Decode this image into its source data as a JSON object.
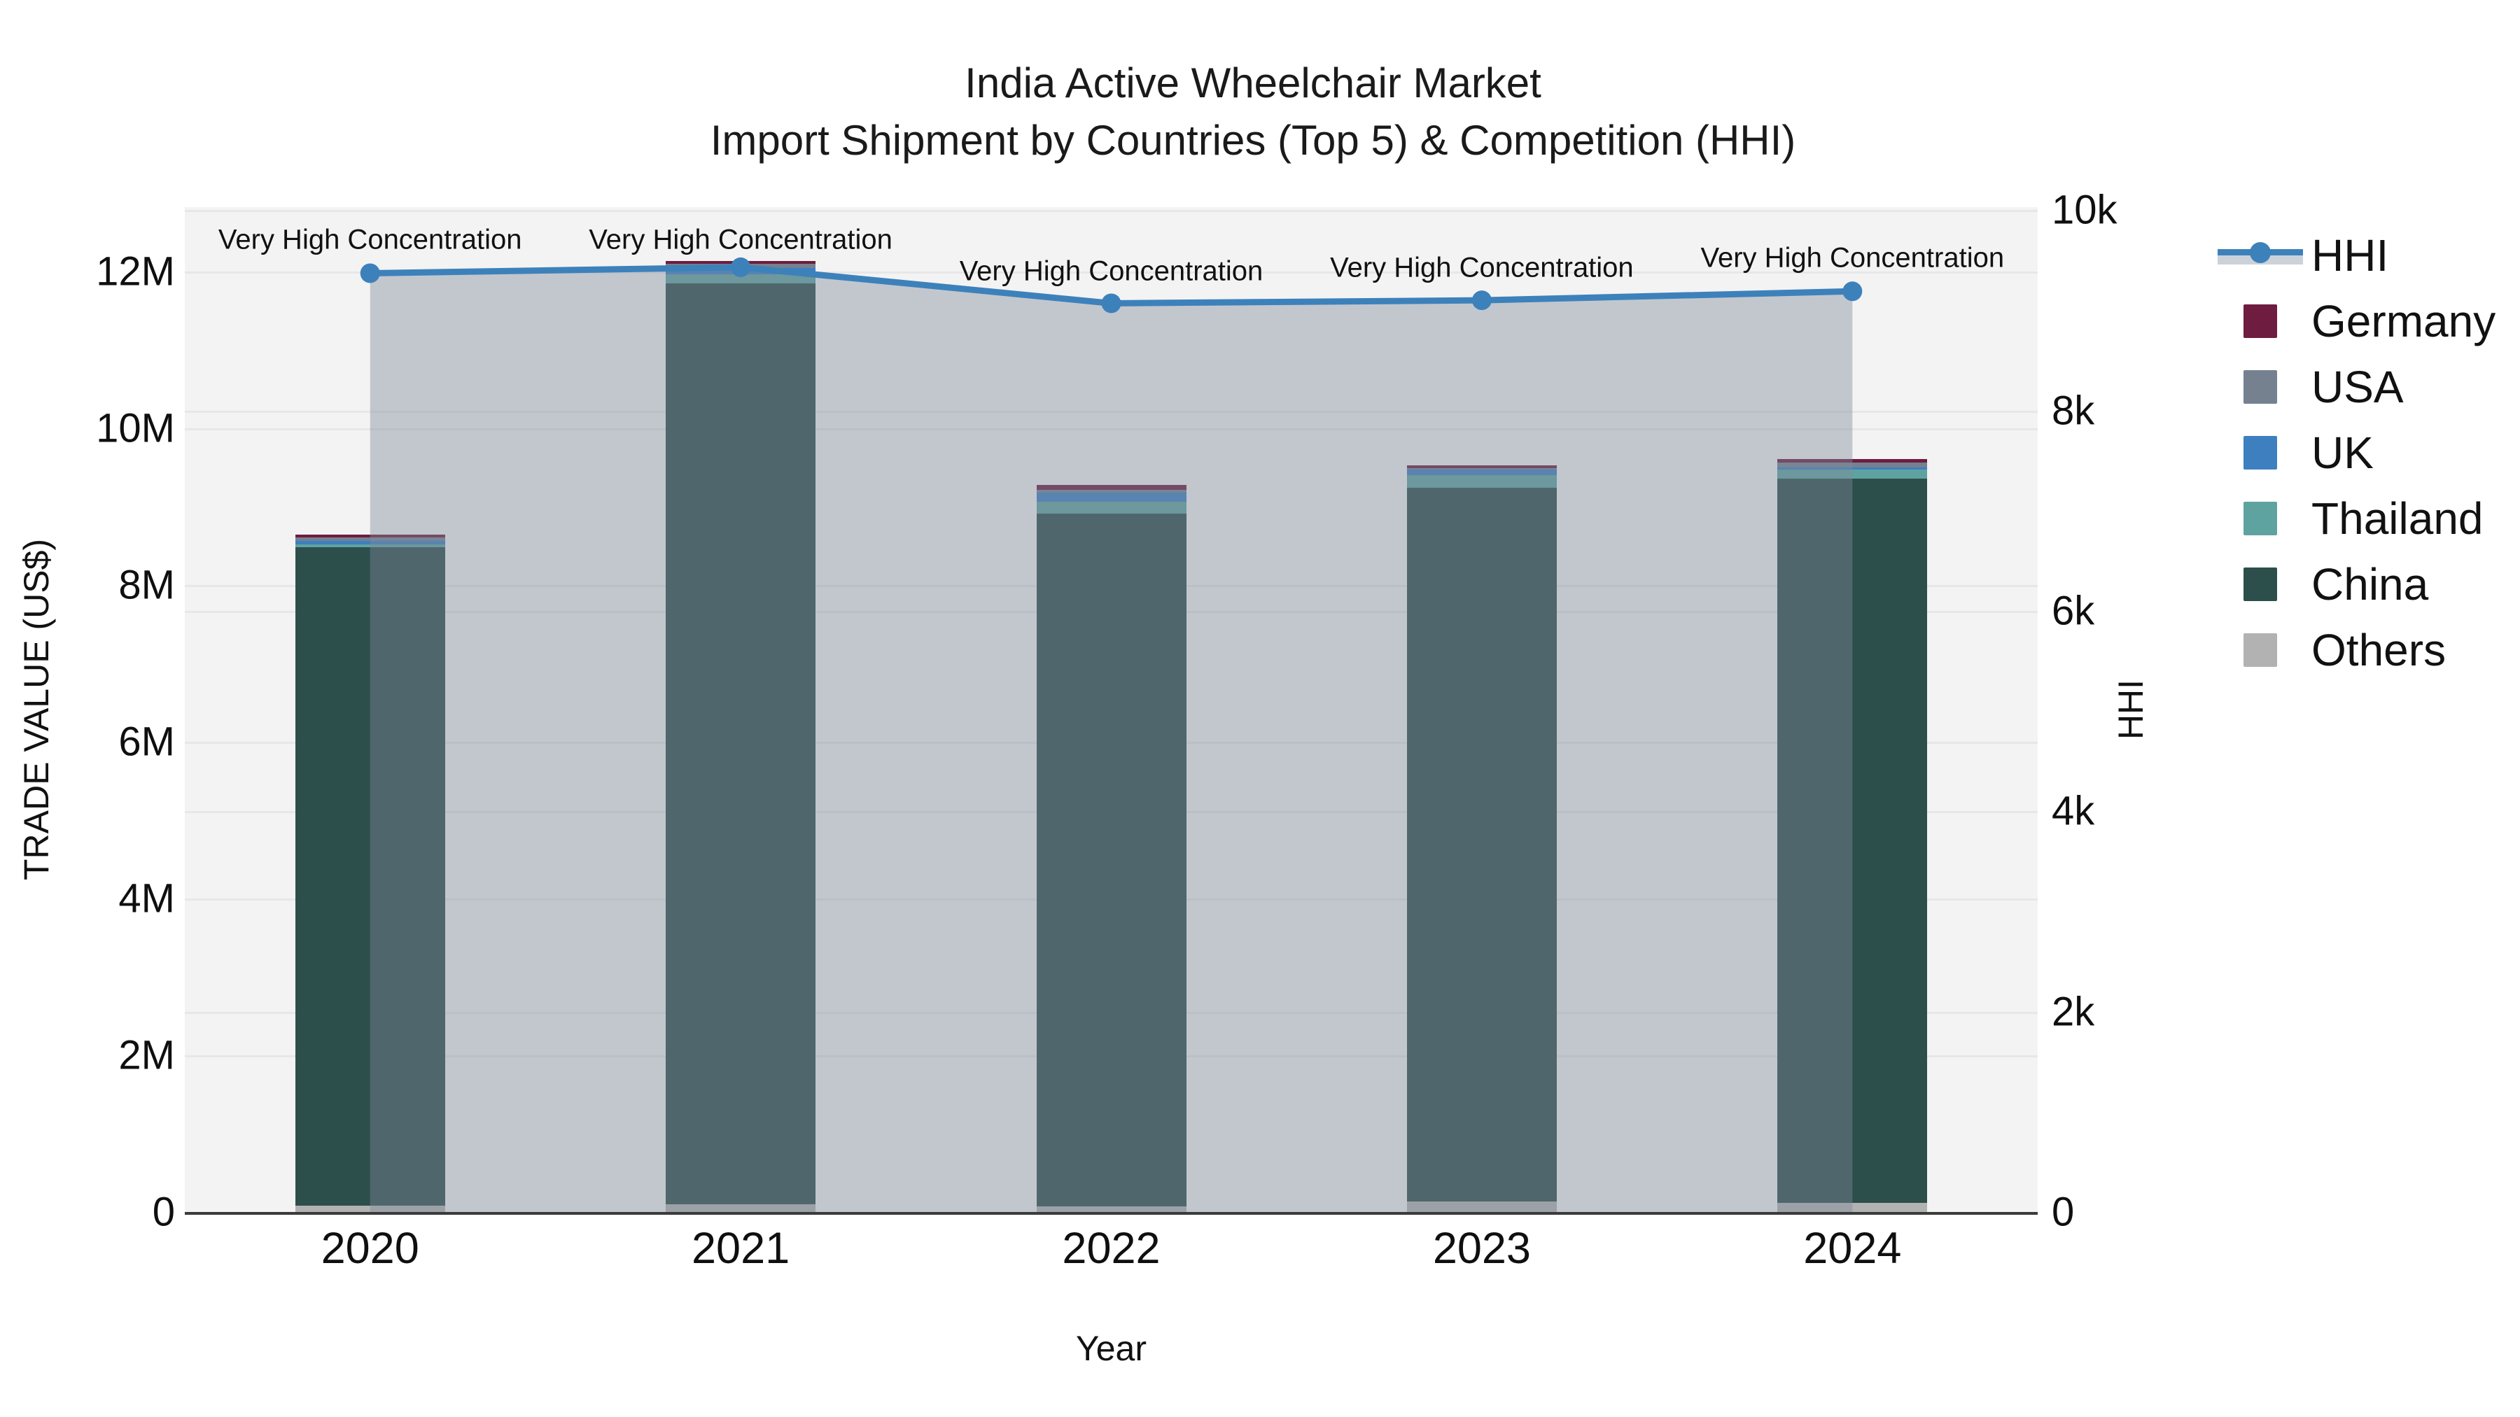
{
  "title": {
    "line1": "India Active Wheelchair Market",
    "line2": "Import Shipment by Countries (Top 5) & Competition (HHI)"
  },
  "axes": {
    "x": {
      "title": "Year"
    },
    "y_left": {
      "title": "TRADE VALUE (US$)",
      "ticks": [
        {
          "label": "0",
          "value": 0
        },
        {
          "label": "2M",
          "value": 2
        },
        {
          "label": "4M",
          "value": 4
        },
        {
          "label": "6M",
          "value": 6
        },
        {
          "label": "8M",
          "value": 8
        },
        {
          "label": "10M",
          "value": 10
        },
        {
          "label": "12M",
          "value": 12
        }
      ]
    },
    "y_right": {
      "title": "HHI",
      "ticks": [
        {
          "label": "0",
          "value": 0
        },
        {
          "label": "2k",
          "value": 2000
        },
        {
          "label": "4k",
          "value": 4000
        },
        {
          "label": "6k",
          "value": 6000
        },
        {
          "label": "8k",
          "value": 8000
        },
        {
          "label": "10k",
          "value": 10000
        }
      ]
    }
  },
  "colors": {
    "hhi_line": "#3d81bb",
    "hhi_area": "rgba(127,139,156,0.42)",
    "hhi_area_legend": "#ccd2d9",
    "plot_background": "#f3f3f3",
    "gridline": "#e6e7e9",
    "axis_line": "#3b3b3b"
  },
  "legend": [
    {
      "name": "HHI",
      "type": "line",
      "color": "#3d81bb"
    },
    {
      "name": "Germany",
      "type": "square",
      "color": "#6e1c3f"
    },
    {
      "name": "USA",
      "type": "square",
      "color": "#75818f"
    },
    {
      "name": "UK",
      "type": "square",
      "color": "#3e7fbf"
    },
    {
      "name": "Thailand",
      "type": "square",
      "color": "#5fa3a1"
    },
    {
      "name": "China",
      "type": "square",
      "color": "#2d4f4b"
    },
    {
      "name": "Others",
      "type": "square",
      "color": "#b2b2b2"
    }
  ],
  "chart_data": {
    "type": "bar+line",
    "title": "India Active Wheelchair Market — Import Shipment by Countries (Top 5) & Competition (HHI)",
    "categories": [
      "2020",
      "2021",
      "2022",
      "2023",
      "2024"
    ],
    "bar_value_unit": "million US$",
    "stack_order_bottom_to_top": [
      "Others",
      "China",
      "Thailand",
      "UK",
      "USA",
      "Germany"
    ],
    "series": [
      {
        "name": "Germany",
        "color": "#6e1c3f",
        "values": [
          0.03,
          0.03,
          0.07,
          0.04,
          0.05
        ]
      },
      {
        "name": "USA",
        "color": "#75818f",
        "values": [
          0.045,
          0.06,
          0.03,
          0.02,
          0.06
        ]
      },
      {
        "name": "UK",
        "color": "#3e7fbf",
        "values": [
          0.045,
          0.08,
          0.12,
          0.07,
          0.03
        ]
      },
      {
        "name": "Thailand",
        "color": "#5fa3a1",
        "values": [
          0.04,
          0.11,
          0.15,
          0.16,
          0.11
        ]
      },
      {
        "name": "China",
        "color": "#2d4f4b",
        "values": [
          8.4,
          11.75,
          8.84,
          9.11,
          9.24
        ]
      },
      {
        "name": "Others",
        "color": "#b2b2b2",
        "values": [
          0.08,
          0.1,
          0.07,
          0.13,
          0.12
        ]
      }
    ],
    "bar_totals": [
      8.64,
      12.13,
      9.28,
      9.53,
      9.61
    ],
    "line_series": {
      "name": "HHI",
      "axis": "right",
      "color": "#3d81bb",
      "values": [
        9370,
        9430,
        9070,
        9100,
        9190
      ]
    },
    "annotations": [
      {
        "text": "Very High Concentration",
        "x_index": 0,
        "y_right": 9705
      },
      {
        "text": "Very High Concentration",
        "x_index": 1,
        "y_right": 9705
      },
      {
        "text": "Very High Concentration",
        "x_index": 2,
        "y_right": 9390
      },
      {
        "text": "Very High Concentration",
        "x_index": 3,
        "y_right": 9420
      },
      {
        "text": "Very High Concentration",
        "x_index": 4,
        "y_right": 9520
      }
    ],
    "xlabel": "Year",
    "ylabel_left": "TRADE VALUE (US$)",
    "ylabel_right": "HHI",
    "ylim_left": [
      0,
      12.82
    ],
    "ylim_right": [
      0,
      10030
    ],
    "grid": true,
    "legend_position": "right"
  }
}
